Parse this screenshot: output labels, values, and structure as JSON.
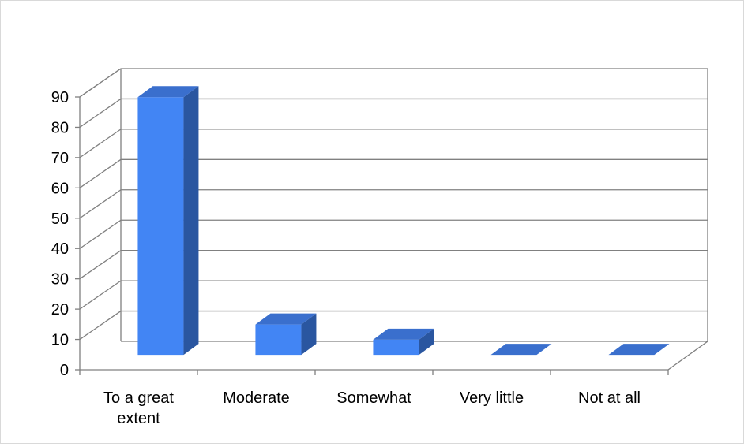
{
  "chart_data": {
    "type": "bar",
    "style": "3d-column",
    "categories": [
      "To a great extent",
      "Moderate",
      "Somewhat",
      "Very little",
      "Not at all"
    ],
    "category_lines": [
      [
        "To a great",
        "extent"
      ],
      [
        "Moderate"
      ],
      [
        "Somewhat"
      ],
      [
        "Very little"
      ],
      [
        "Not at all"
      ]
    ],
    "series": [
      {
        "values": [
          85,
          10,
          5,
          0,
          0
        ]
      }
    ],
    "ylim": [
      0,
      90
    ],
    "yticks": [
      0,
      10,
      20,
      30,
      40,
      50,
      60,
      70,
      80,
      90
    ],
    "grid": true,
    "legend": "none",
    "title": "",
    "xlabel": "",
    "ylabel": "",
    "colors": {
      "bar_front": "#4285f4",
      "bar_top": "#3a6fcd",
      "bar_side": "#2a56a0",
      "grid": "#808080",
      "axis": "#808080"
    }
  }
}
